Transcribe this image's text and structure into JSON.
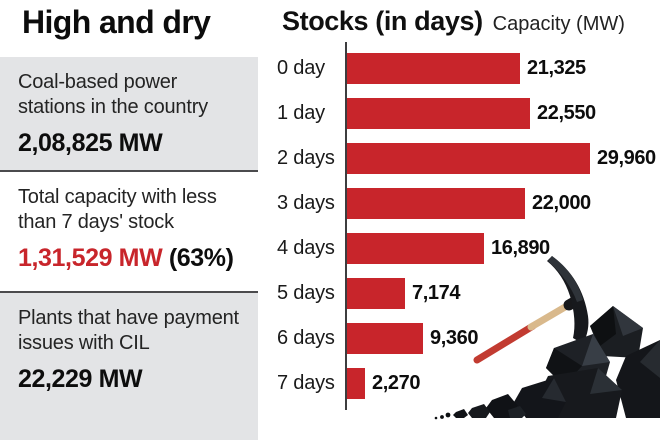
{
  "headline": "High and dry",
  "left_panel": {
    "sections": [
      {
        "label_line1": "Coal-based power",
        "label_line2": "stations in the country",
        "value": "2,08,825 MW",
        "suffix": ""
      },
      {
        "label_line1": "Total capacity with less",
        "label_line2": "than 7 days' stock",
        "value": "1,31,529 MW",
        "suffix": "(63%)"
      },
      {
        "label_line1": "Plants that have payment",
        "label_line2": "issues with CIL",
        "value": "22,229 MW",
        "suffix": ""
      }
    ]
  },
  "chart": {
    "title": "Stocks (in days)",
    "units_label": "Capacity (MW)"
  },
  "chart_data": {
    "type": "bar",
    "orientation": "horizontal",
    "title": "Stocks (in days)",
    "xlabel": "Capacity (MW)",
    "categories": [
      "0 day",
      "1 day",
      "2 days",
      "3 days",
      "4 days",
      "5 days",
      "6 days",
      "7 days"
    ],
    "values": [
      21325,
      22550,
      29960,
      22000,
      16890,
      7174,
      9360,
      2270
    ],
    "value_labels": [
      "21,325",
      "22,550",
      "29,960",
      "22,000",
      "16,890",
      "7,174",
      "9,360",
      "2,270"
    ],
    "bar_color": "#c8252b",
    "xlim": [
      0,
      30000
    ],
    "grid": false,
    "legend": "none"
  },
  "icons": [
    "pickaxe-icon",
    "coal-pile-icon"
  ],
  "colors": {
    "accent_red": "#c8252b",
    "panel_gray": "#e3e4e6",
    "divider_gray": "#4b4b4d",
    "text_dark": "#0d0d0d"
  }
}
